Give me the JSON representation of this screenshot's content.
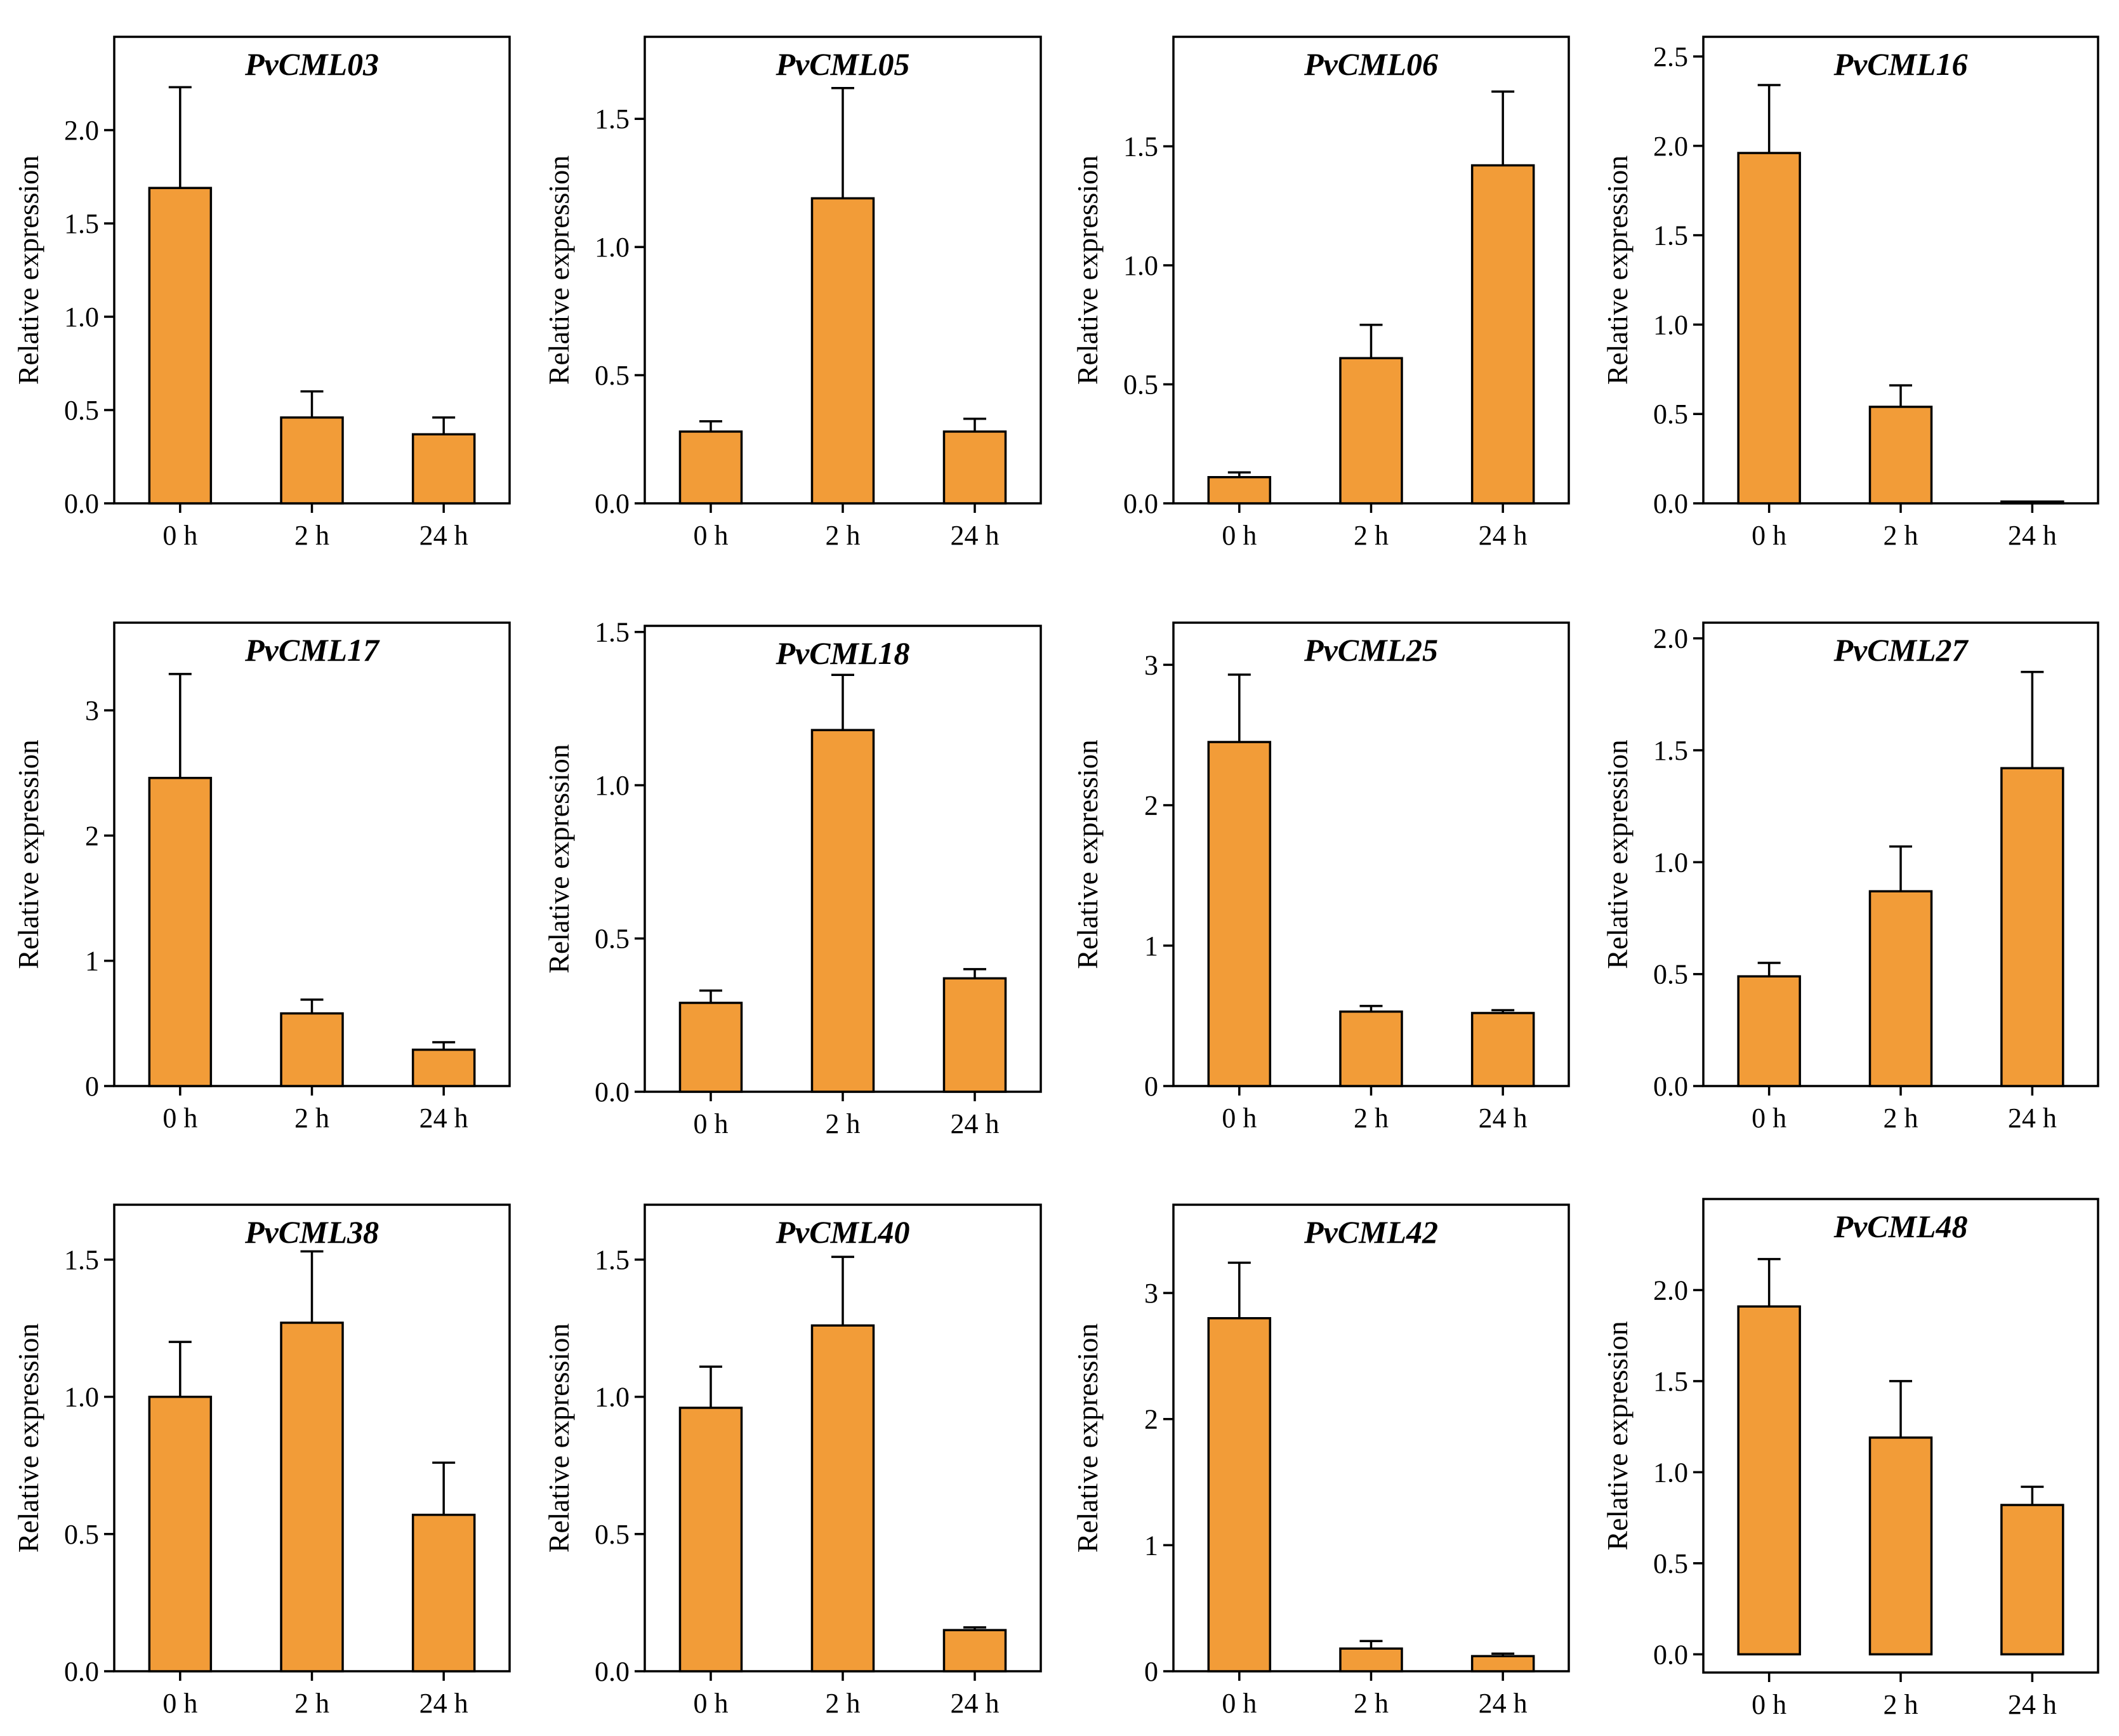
{
  "colors": {
    "bar": "#f29c38",
    "stroke": "#000000",
    "background": "#ffffff"
  },
  "chart_data": [
    {
      "type": "bar",
      "title": "PvCML03",
      "xlabel": "",
      "ylabel": "Relative expression",
      "categories": [
        "0 h",
        "2 h",
        "24 h"
      ],
      "values": [
        1.69,
        0.46,
        0.37
      ],
      "errors": [
        0.54,
        0.14,
        0.09
      ],
      "ylim": [
        0,
        2.5
      ],
      "yticks": [
        0.0,
        0.5,
        1.0,
        1.5,
        2.0
      ],
      "ytick_labels": [
        "0.0",
        "0.5",
        "1.0",
        "1.5",
        "2.0"
      ]
    },
    {
      "type": "bar",
      "title": "PvCML05",
      "xlabel": "",
      "ylabel": "Relative expression",
      "categories": [
        "0 h",
        "2 h",
        "24 h"
      ],
      "values": [
        0.28,
        1.19,
        0.28
      ],
      "errors": [
        0.04,
        0.43,
        0.05
      ],
      "ylim": [
        0,
        1.82
      ],
      "yticks": [
        0.0,
        0.5,
        1.0,
        1.5
      ],
      "ytick_labels": [
        "0.0",
        "0.5",
        "1.0",
        "1.5"
      ]
    },
    {
      "type": "bar",
      "title": "PvCML06",
      "xlabel": "",
      "ylabel": "Relative expression",
      "categories": [
        "0 h",
        "2 h",
        "24 h"
      ],
      "values": [
        0.11,
        0.61,
        1.42
      ],
      "errors": [
        0.02,
        0.14,
        0.31
      ],
      "ylim": [
        0,
        1.96
      ],
      "yticks": [
        0.0,
        0.5,
        1.0,
        1.5
      ],
      "ytick_labels": [
        "0.0",
        "0.5",
        "1.0",
        "1.5"
      ]
    },
    {
      "type": "bar",
      "title": "PvCML16",
      "xlabel": "",
      "ylabel": "Relative expression",
      "categories": [
        "0 h",
        "2 h",
        "24 h"
      ],
      "values": [
        1.96,
        0.54,
        0.01
      ],
      "errors": [
        0.38,
        0.12,
        0.0
      ],
      "ylim": [
        0,
        2.61
      ],
      "yticks": [
        0.0,
        0.5,
        1.0,
        1.5,
        2.0,
        2.5
      ],
      "ytick_labels": [
        "0.0",
        "0.5",
        "1.0",
        "1.5",
        "2.0",
        "2.5"
      ]
    },
    {
      "type": "bar",
      "title": "PvCML17",
      "xlabel": "",
      "ylabel": "Relative expression",
      "categories": [
        "0 h",
        "2 h",
        "24 h"
      ],
      "values": [
        2.46,
        0.58,
        0.29
      ],
      "errors": [
        0.83,
        0.11,
        0.06
      ],
      "ylim": [
        0,
        3.7
      ],
      "yticks": [
        0,
        1,
        2,
        3
      ],
      "ytick_labels": [
        "0",
        "1",
        "2",
        "3"
      ]
    },
    {
      "type": "bar",
      "title": "PvCML18",
      "xlabel": "",
      "ylabel": "Relative expression",
      "categories": [
        "0 h",
        "2 h",
        "24 h"
      ],
      "values": [
        0.29,
        1.18,
        0.37
      ],
      "errors": [
        0.04,
        0.18,
        0.03
      ],
      "ylim": [
        0,
        1.52
      ],
      "yticks": [
        0.0,
        0.5,
        1.0,
        1.5
      ],
      "ytick_labels": [
        "0.0",
        "0.5",
        "1.0",
        "1.5"
      ]
    },
    {
      "type": "bar",
      "title": "PvCML25",
      "xlabel": "",
      "ylabel": "Relative expression",
      "categories": [
        "0 h",
        "2 h",
        "24 h"
      ],
      "values": [
        2.45,
        0.53,
        0.52
      ],
      "errors": [
        0.48,
        0.04,
        0.02
      ],
      "ylim": [
        0,
        3.3
      ],
      "yticks": [
        0,
        1,
        2,
        3
      ],
      "ytick_labels": [
        "0",
        "1",
        "2",
        "3"
      ]
    },
    {
      "type": "bar",
      "title": "PvCML27",
      "xlabel": "",
      "ylabel": "Relative expression",
      "categories": [
        "0 h",
        "2 h",
        "24 h"
      ],
      "values": [
        0.49,
        0.87,
        1.42
      ],
      "errors": [
        0.06,
        0.2,
        0.43
      ],
      "ylim": [
        0,
        2.07
      ],
      "yticks": [
        0.0,
        0.5,
        1.0,
        1.5,
        2.0
      ],
      "ytick_labels": [
        "0.0",
        "0.5",
        "1.0",
        "1.5",
        "2.0"
      ]
    },
    {
      "type": "bar",
      "title": "PvCML38",
      "xlabel": "",
      "ylabel": "Relative expression",
      "categories": [
        "0 h",
        "2 h",
        "24 h"
      ],
      "values": [
        1.0,
        1.27,
        0.57
      ],
      "errors": [
        0.2,
        0.26,
        0.19
      ],
      "ylim": [
        0,
        1.7
      ],
      "yticks": [
        0.0,
        0.5,
        1.0,
        1.5
      ],
      "ytick_labels": [
        "0.0",
        "0.5",
        "1.0",
        "1.5"
      ]
    },
    {
      "type": "bar",
      "title": "PvCML40",
      "xlabel": "",
      "ylabel": "Relative expression",
      "categories": [
        "0 h",
        "2 h",
        "24 h"
      ],
      "values": [
        0.96,
        1.26,
        0.15
      ],
      "errors": [
        0.15,
        0.25,
        0.01
      ],
      "ylim": [
        0,
        1.7
      ],
      "yticks": [
        0.0,
        0.5,
        1.0,
        1.5
      ],
      "ytick_labels": [
        "0.0",
        "0.5",
        "1.0",
        "1.5"
      ]
    },
    {
      "type": "bar",
      "title": "PvCML42",
      "xlabel": "",
      "ylabel": "Relative expression",
      "categories": [
        "0 h",
        "2 h",
        "24 h"
      ],
      "values": [
        2.8,
        0.18,
        0.12
      ],
      "errors": [
        0.44,
        0.06,
        0.02
      ],
      "ylim": [
        0,
        3.7
      ],
      "yticks": [
        0,
        1,
        2,
        3
      ],
      "ytick_labels": [
        "0",
        "1",
        "2",
        "3"
      ]
    },
    {
      "type": "bar",
      "title": "PvCML48",
      "xlabel": "",
      "ylabel": "Relative expression",
      "categories": [
        "0 h",
        "2 h",
        "24 h"
      ],
      "values": [
        1.91,
        1.19,
        0.82
      ],
      "errors": [
        0.26,
        0.31,
        0.1
      ],
      "ylim": [
        -0.1,
        2.5
      ],
      "yticks": [
        0.0,
        0.5,
        1.0,
        1.5,
        2.0
      ],
      "ytick_labels": [
        "0.0",
        "0.5",
        "1.0",
        "1.5",
        "2.0"
      ]
    }
  ]
}
